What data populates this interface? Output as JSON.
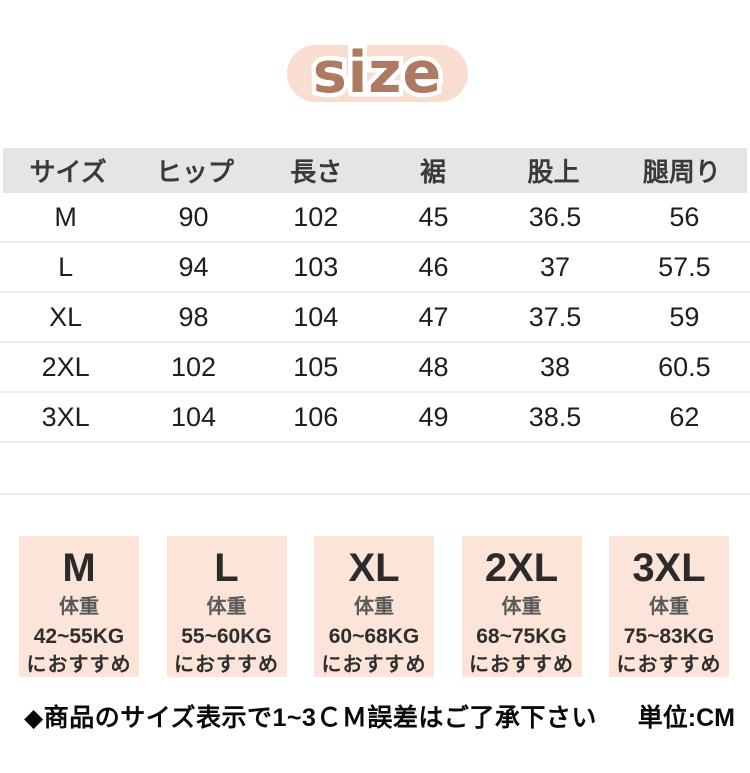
{
  "title": "size",
  "chart_data": {
    "type": "table",
    "title": "size",
    "unit": "CM",
    "columns": [
      "サイズ",
      "ヒップ",
      "長さ",
      "裾",
      "股上",
      "腿周り"
    ],
    "rows": [
      [
        "M",
        "90",
        "102",
        "45",
        "36.5",
        "56"
      ],
      [
        "L",
        "94",
        "103",
        "46",
        "37",
        "57.5"
      ],
      [
        "XL",
        "98",
        "104",
        "47",
        "37.5",
        "59"
      ],
      [
        "2XL",
        "102",
        "105",
        "48",
        "38",
        "60.5"
      ],
      [
        "3XL",
        "104",
        "106",
        "49",
        "38.5",
        "62"
      ]
    ]
  },
  "recommendations": [
    {
      "size": "M",
      "label": "体重",
      "weight": "42~55KG",
      "suffix": "におすすめ"
    },
    {
      "size": "L",
      "label": "体重",
      "weight": "55~60KG",
      "suffix": "におすすめ"
    },
    {
      "size": "XL",
      "label": "体重",
      "weight": "60~68KG",
      "suffix": "におすすめ"
    },
    {
      "size": "2XL",
      "label": "体重",
      "weight": "68~75KG",
      "suffix": "におすすめ"
    },
    {
      "size": "3XL",
      "label": "体重",
      "weight": "75~83KG",
      "suffix": "におすすめ"
    }
  ],
  "footer": {
    "note": "◆商品のサイズ表示で1~3ＣＭ誤差はご了承下さい",
    "unit": "単位:CM"
  },
  "colors": {
    "pill_bg": "#f9ddd1",
    "pill_text": "#ad7a62",
    "header_bg": "#e5e5e5",
    "box_bg": "#fce4d8"
  }
}
